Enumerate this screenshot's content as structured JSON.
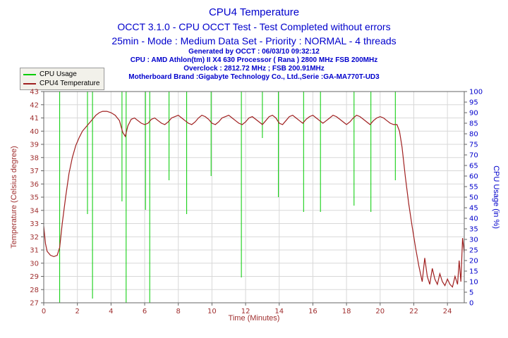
{
  "header": {
    "title": "CPU4 Temperature",
    "subtitle1": "OCCT 3.1.0 - CPU OCCT Test - Test Completed without errors",
    "subtitle2": "25min - Mode : Medium Data Set - Priority : NORMAL - 4 threads",
    "info_lines": [
      "Generated by OCCT : 06/03/10 09:32:12",
      "CPU : AMD Athlon(tm) II X4 630 Processor ( Rana ) 2800 MHz FSB 200MHz",
      "Overclock : 2812.72 MHz ; FSB 200.91MHz",
      "Motherboard Brand :Gigabyte Technology Co., Ltd.,Serie :GA-MA770T-UD3"
    ]
  },
  "legend": {
    "items": [
      {
        "label": "CPU Usage",
        "color": "#00cc00"
      },
      {
        "label": "CPU4 Temperature",
        "color": "#a02020"
      }
    ]
  },
  "colors": {
    "accent_blue": "#0000cc",
    "temp": "#a03030",
    "usage": "#0000cc",
    "grid": "#d8d8d8",
    "frame": "#666666"
  },
  "chart_data": {
    "type": "line",
    "title": "CPU4 Temperature",
    "xlabel": "Time (Minutes)",
    "ylabel_left": "Temperature (Celsius degree)",
    "ylabel_right": "CPU Usage (in %)",
    "x_range": [
      0,
      25
    ],
    "x_tick_step": 2,
    "temp_range": [
      27,
      43
    ],
    "temp_tick_step": 1,
    "usage_range": [
      0,
      100
    ],
    "usage_tick_step": 5,
    "grid": true,
    "legend_position": "top-left",
    "series": [
      {
        "name": "CPU Usage",
        "axis": "right",
        "color": "#00cc00",
        "baseline": 100,
        "spikes": [
          [
            0.95,
            0
          ],
          [
            2.6,
            42
          ],
          [
            2.9,
            2
          ],
          [
            4.65,
            48
          ],
          [
            4.9,
            0
          ],
          [
            6.05,
            44
          ],
          [
            6.3,
            0
          ],
          [
            7.45,
            58
          ],
          [
            8.5,
            42
          ],
          [
            9.95,
            60
          ],
          [
            11.75,
            12
          ],
          [
            13.0,
            78
          ],
          [
            13.95,
            50
          ],
          [
            15.45,
            43
          ],
          [
            16.45,
            43
          ],
          [
            18.45,
            46
          ],
          [
            19.45,
            43
          ],
          [
            20.9,
            58
          ]
        ]
      },
      {
        "name": "CPU4 Temperature",
        "axis": "left",
        "color": "#a02020",
        "points": [
          [
            0,
            32.8
          ],
          [
            0.1,
            31.5
          ],
          [
            0.2,
            30.9
          ],
          [
            0.4,
            30.6
          ],
          [
            0.6,
            30.5
          ],
          [
            0.8,
            30.6
          ],
          [
            0.95,
            31.2
          ],
          [
            1.1,
            33.0
          ],
          [
            1.3,
            35.0
          ],
          [
            1.5,
            36.8
          ],
          [
            1.7,
            38.0
          ],
          [
            1.9,
            38.9
          ],
          [
            2.1,
            39.5
          ],
          [
            2.3,
            40.0
          ],
          [
            2.5,
            40.3
          ],
          [
            2.7,
            40.6
          ],
          [
            2.9,
            40.9
          ],
          [
            3.1,
            41.2
          ],
          [
            3.3,
            41.4
          ],
          [
            3.5,
            41.5
          ],
          [
            3.75,
            41.5
          ],
          [
            4.0,
            41.4
          ],
          [
            4.25,
            41.2
          ],
          [
            4.5,
            40.8
          ],
          [
            4.7,
            39.9
          ],
          [
            4.85,
            39.6
          ],
          [
            5.0,
            40.4
          ],
          [
            5.2,
            40.9
          ],
          [
            5.4,
            41.0
          ],
          [
            5.6,
            40.8
          ],
          [
            5.8,
            40.6
          ],
          [
            6.0,
            40.5
          ],
          [
            6.2,
            40.6
          ],
          [
            6.4,
            40.9
          ],
          [
            6.6,
            41.0
          ],
          [
            6.8,
            40.8
          ],
          [
            7.0,
            40.6
          ],
          [
            7.2,
            40.5
          ],
          [
            7.4,
            40.7
          ],
          [
            7.6,
            41.0
          ],
          [
            7.8,
            41.1
          ],
          [
            8.0,
            41.2
          ],
          [
            8.2,
            41.0
          ],
          [
            8.4,
            40.8
          ],
          [
            8.6,
            40.6
          ],
          [
            8.8,
            40.5
          ],
          [
            9.0,
            40.7
          ],
          [
            9.2,
            41.0
          ],
          [
            9.4,
            41.2
          ],
          [
            9.6,
            41.1
          ],
          [
            9.8,
            40.9
          ],
          [
            10.0,
            40.6
          ],
          [
            10.2,
            40.5
          ],
          [
            10.4,
            40.7
          ],
          [
            10.6,
            41.0
          ],
          [
            10.8,
            41.1
          ],
          [
            11.0,
            41.2
          ],
          [
            11.2,
            41.0
          ],
          [
            11.4,
            40.8
          ],
          [
            11.6,
            40.6
          ],
          [
            11.8,
            40.5
          ],
          [
            12.0,
            40.7
          ],
          [
            12.2,
            41.0
          ],
          [
            12.4,
            41.1
          ],
          [
            12.6,
            40.9
          ],
          [
            12.8,
            40.7
          ],
          [
            13.0,
            40.5
          ],
          [
            13.2,
            40.8
          ],
          [
            13.4,
            41.1
          ],
          [
            13.6,
            41.2
          ],
          [
            13.8,
            41.0
          ],
          [
            14.0,
            40.6
          ],
          [
            14.2,
            40.5
          ],
          [
            14.4,
            40.8
          ],
          [
            14.6,
            41.1
          ],
          [
            14.8,
            41.2
          ],
          [
            15.0,
            41.0
          ],
          [
            15.2,
            40.8
          ],
          [
            15.4,
            40.6
          ],
          [
            15.6,
            40.9
          ],
          [
            15.8,
            41.1
          ],
          [
            16.0,
            41.2
          ],
          [
            16.2,
            41.0
          ],
          [
            16.4,
            40.8
          ],
          [
            16.6,
            40.6
          ],
          [
            16.8,
            40.8
          ],
          [
            17.0,
            41.0
          ],
          [
            17.2,
            41.2
          ],
          [
            17.4,
            41.1
          ],
          [
            17.6,
            40.9
          ],
          [
            17.8,
            40.7
          ],
          [
            18.0,
            40.5
          ],
          [
            18.2,
            40.7
          ],
          [
            18.4,
            41.0
          ],
          [
            18.6,
            41.2
          ],
          [
            18.8,
            41.1
          ],
          [
            19.0,
            40.9
          ],
          [
            19.2,
            40.7
          ],
          [
            19.4,
            40.5
          ],
          [
            19.6,
            40.8
          ],
          [
            19.8,
            41.0
          ],
          [
            20.0,
            41.1
          ],
          [
            20.2,
            41.0
          ],
          [
            20.4,
            40.8
          ],
          [
            20.6,
            40.6
          ],
          [
            20.8,
            40.5
          ],
          [
            21.0,
            40.5
          ],
          [
            21.15,
            40.0
          ],
          [
            21.3,
            38.8
          ],
          [
            21.5,
            36.5
          ],
          [
            21.7,
            34.5
          ],
          [
            21.9,
            32.8
          ],
          [
            22.1,
            31.2
          ],
          [
            22.3,
            29.8
          ],
          [
            22.5,
            28.6
          ],
          [
            22.65,
            30.4
          ],
          [
            22.8,
            29.0
          ],
          [
            22.95,
            28.4
          ],
          [
            23.1,
            29.6
          ],
          [
            23.25,
            28.8
          ],
          [
            23.4,
            28.4
          ],
          [
            23.55,
            29.2
          ],
          [
            23.7,
            28.6
          ],
          [
            23.85,
            28.3
          ],
          [
            24.0,
            28.8
          ],
          [
            24.15,
            28.4
          ],
          [
            24.3,
            28.2
          ],
          [
            24.45,
            29.0
          ],
          [
            24.6,
            28.4
          ],
          [
            24.7,
            30.2
          ],
          [
            24.8,
            28.6
          ],
          [
            24.9,
            31.9
          ],
          [
            25.0,
            30.8
          ]
        ]
      }
    ]
  }
}
